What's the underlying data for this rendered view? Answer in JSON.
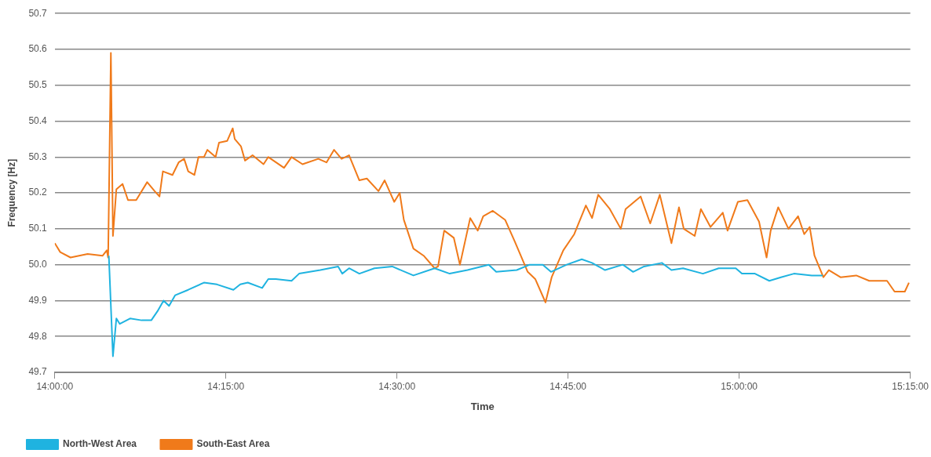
{
  "chart_data": {
    "type": "line",
    "xlabel": "Time",
    "ylabel": "Frequency [Hz]",
    "xlim": [
      14,
      15.25
    ],
    "xticks": [
      {
        "value": 14,
        "label": "14:00:00"
      },
      {
        "value": 14.25,
        "label": "14:15:00"
      },
      {
        "value": 14.5,
        "label": "14:30:00"
      },
      {
        "value": 14.75,
        "label": "14:45:00"
      },
      {
        "value": 15,
        "label": "15:00:00"
      },
      {
        "value": 15.25,
        "label": "15:15:00"
      }
    ],
    "ylim": [
      49.7,
      50.7
    ],
    "yticks": [
      49.7,
      49.8,
      49.9,
      {
        "value": 50.0,
        "label": "50.0"
      },
      50.1,
      50.2,
      50.3,
      50.4,
      50.5,
      50.6,
      50.7
    ],
    "grid": "y",
    "legend": "bottom left",
    "line_style": "solid",
    "series": [
      {
        "name": "North-West Area",
        "color": "#1fb3e0",
        "x": [
          14.079,
          14.085,
          14.09,
          14.095,
          14.11,
          14.127,
          14.141,
          14.15,
          14.159,
          14.167,
          14.176,
          14.195,
          14.218,
          14.237,
          14.261,
          14.271,
          14.282,
          14.303,
          14.312,
          14.323,
          14.346,
          14.357,
          14.388,
          14.414,
          14.42,
          14.43,
          14.445,
          14.467,
          14.493,
          14.524,
          14.555,
          14.577,
          14.603,
          14.634,
          14.645,
          14.675,
          14.694,
          14.713,
          14.725,
          14.748,
          14.77,
          14.785,
          14.804,
          14.83,
          14.845,
          14.861,
          14.887,
          14.901,
          14.918,
          14.947,
          14.97,
          14.995,
          15.004,
          15.023,
          15.044,
          15.061,
          15.08,
          15.106,
          15.122
        ],
        "values": [
          50.025,
          49.745,
          49.85,
          49.835,
          49.85,
          49.845,
          49.845,
          49.87,
          49.9,
          49.885,
          49.915,
          49.93,
          49.95,
          49.945,
          49.93,
          49.945,
          49.95,
          49.935,
          49.96,
          49.96,
          49.955,
          49.975,
          49.985,
          49.995,
          49.975,
          49.99,
          49.975,
          49.99,
          49.995,
          49.97,
          49.99,
          49.975,
          49.985,
          50.0,
          49.98,
          49.985,
          50.0,
          50.0,
          49.98,
          50.0,
          50.015,
          50.005,
          49.985,
          50.0,
          49.98,
          49.995,
          50.005,
          49.985,
          49.99,
          49.975,
          49.99,
          49.99,
          49.975,
          49.975,
          49.955,
          49.965,
          49.975,
          49.97,
          49.97
        ]
      },
      {
        "name": "South-East Area",
        "color": "#f07a1a",
        "x": [
          14.0,
          14.008,
          14.023,
          14.048,
          14.07,
          14.076,
          14.078,
          14.082,
          14.085,
          14.09,
          14.099,
          14.107,
          14.119,
          14.135,
          14.146,
          14.153,
          14.158,
          14.172,
          14.181,
          14.189,
          14.195,
          14.204,
          14.21,
          14.218,
          14.223,
          14.235,
          14.24,
          14.252,
          14.26,
          14.263,
          14.272,
          14.278,
          14.289,
          14.305,
          14.312,
          14.335,
          14.346,
          14.362,
          14.385,
          14.397,
          14.408,
          14.419,
          14.43,
          14.445,
          14.456,
          14.473,
          14.482,
          14.496,
          14.504,
          14.51,
          14.524,
          14.539,
          14.555,
          14.56,
          14.569,
          14.583,
          14.592,
          14.607,
          14.618,
          14.626,
          14.64,
          14.658,
          14.672,
          14.691,
          14.702,
          14.717,
          14.726,
          14.743,
          14.759,
          14.776,
          14.785,
          14.794,
          14.811,
          14.827,
          14.834,
          14.856,
          14.87,
          14.884,
          14.901,
          14.912,
          14.919,
          14.935,
          14.944,
          14.958,
          14.976,
          14.983,
          14.998,
          15.012,
          15.029,
          15.04,
          15.046,
          15.057,
          15.072,
          15.086,
          15.095,
          15.103,
          15.11,
          15.123,
          15.131,
          15.148,
          15.171,
          15.19,
          15.216,
          15.227,
          15.242,
          15.248
        ],
        "values": [
          50.06,
          50.035,
          50.02,
          50.03,
          50.025,
          50.04,
          50.02,
          50.59,
          50.08,
          50.21,
          50.225,
          50.18,
          50.18,
          50.23,
          50.205,
          50.19,
          50.26,
          50.25,
          50.285,
          50.295,
          50.26,
          50.25,
          50.3,
          50.3,
          50.32,
          50.3,
          50.34,
          50.345,
          50.38,
          50.35,
          50.33,
          50.29,
          50.305,
          50.28,
          50.3,
          50.27,
          50.3,
          50.28,
          50.295,
          50.285,
          50.32,
          50.295,
          50.305,
          50.235,
          50.24,
          50.205,
          50.235,
          50.175,
          50.2,
          50.125,
          50.045,
          50.025,
          49.99,
          49.995,
          50.095,
          50.075,
          50.0,
          50.13,
          50.095,
          50.135,
          50.15,
          50.125,
          50.065,
          49.98,
          49.96,
          49.895,
          49.965,
          50.04,
          50.085,
          50.165,
          50.13,
          50.195,
          50.155,
          50.1,
          50.155,
          50.19,
          50.115,
          50.195,
          50.06,
          50.16,
          50.1,
          50.08,
          50.155,
          50.105,
          50.145,
          50.095,
          50.175,
          50.18,
          50.12,
          50.02,
          50.095,
          50.16,
          50.1,
          50.135,
          50.085,
          50.105,
          50.025,
          49.965,
          49.985,
          49.965,
          49.97,
          49.955,
          49.955,
          49.925,
          49.925,
          49.95
        ]
      }
    ]
  }
}
